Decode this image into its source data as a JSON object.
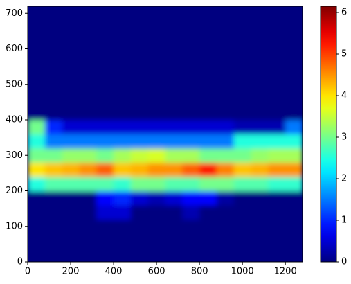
{
  "chart_data": {
    "type": "heatmap",
    "colormap": "jet",
    "xbins": [
      0,
      80,
      160,
      240,
      320,
      400,
      480,
      560,
      640,
      720,
      800,
      880,
      960,
      1040,
      1120,
      1200,
      1280
    ],
    "ybins": [
      0,
      40,
      80,
      120,
      160,
      200,
      240,
      280,
      320,
      360,
      400,
      440,
      480,
      520,
      560,
      600,
      640,
      680,
      720
    ],
    "z": [
      [
        0,
        0,
        0,
        0,
        0,
        0,
        0,
        0,
        0,
        0,
        0,
        0,
        0,
        0,
        0,
        0
      ],
      [
        0,
        0,
        0,
        0,
        0,
        0,
        0,
        0,
        0,
        0,
        0,
        0,
        0,
        0,
        0,
        0
      ],
      [
        0,
        0,
        0,
        0,
        0,
        0,
        0,
        0,
        0,
        0,
        0,
        0,
        0,
        0,
        0,
        0
      ],
      [
        0,
        0,
        0,
        0,
        0.5,
        0.5,
        0,
        0,
        0,
        0.3,
        0,
        0,
        0,
        0,
        0,
        0
      ],
      [
        0,
        0,
        0,
        0,
        0.8,
        1,
        0.5,
        0.3,
        0.5,
        0.8,
        0.8,
        0.2,
        0,
        0,
        0,
        0
      ],
      [
        2.5,
        2.8,
        2.8,
        2.8,
        2.8,
        2.6,
        3,
        3,
        2.8,
        2.8,
        3,
        3,
        2.8,
        2.8,
        2.6,
        2.6
      ],
      [
        4,
        4.2,
        4.3,
        4.5,
        4.8,
        4.2,
        4.3,
        4.5,
        4.5,
        4.8,
        5.2,
        4.6,
        4.2,
        4.3,
        4.5,
        4.5
      ],
      [
        3,
        3,
        3.2,
        3.2,
        3,
        3.3,
        3.5,
        3.6,
        3.3,
        3.3,
        3,
        3,
        3,
        3.2,
        3.3,
        3.3
      ],
      [
        2.5,
        1.5,
        1.5,
        1.5,
        1.5,
        1.5,
        1.5,
        1.5,
        1.5,
        1.5,
        1.5,
        1.5,
        2.5,
        2.5,
        2.5,
        2.5
      ],
      [
        3,
        1,
        0.5,
        0.5,
        0.5,
        0.5,
        0.5,
        0.5,
        0.5,
        0.5,
        0.5,
        0.5,
        0.3,
        0.3,
        0.3,
        1.5
      ],
      [
        0,
        0,
        0,
        0,
        0,
        0,
        0,
        0,
        0,
        0,
        0,
        0,
        0,
        0,
        0,
        0
      ],
      [
        0,
        0,
        0,
        0,
        0,
        0,
        0,
        0,
        0,
        0,
        0,
        0,
        0,
        0,
        0,
        0
      ],
      [
        0,
        0,
        0,
        0,
        0,
        0,
        0,
        0,
        0,
        0,
        0,
        0,
        0,
        0,
        0,
        0
      ],
      [
        0,
        0,
        0,
        0,
        0,
        0,
        0,
        0,
        0,
        0,
        0,
        0,
        0,
        0,
        0,
        0
      ],
      [
        0,
        0,
        0,
        0,
        0,
        0,
        0,
        0,
        0,
        0,
        0,
        0,
        0,
        0,
        0,
        0
      ],
      [
        0,
        0,
        0,
        0,
        0,
        0,
        0,
        0,
        0,
        0,
        0,
        0,
        0,
        0,
        0,
        0
      ],
      [
        0,
        0,
        0,
        0,
        0,
        0,
        0,
        0,
        0,
        0,
        0,
        0,
        0,
        0,
        0,
        0
      ],
      [
        0,
        0,
        0,
        0,
        0,
        0,
        0,
        0,
        0,
        0,
        0,
        0,
        0,
        0,
        0,
        0
      ]
    ],
    "xlim": [
      0,
      1280
    ],
    "ylim": [
      0,
      720
    ],
    "xticks": [
      0,
      200,
      400,
      600,
      800,
      1000,
      1200
    ],
    "yticks": [
      0,
      100,
      200,
      300,
      400,
      500,
      600,
      700
    ],
    "clim": [
      0,
      6.15
    ],
    "cticks": [
      0,
      1,
      2,
      3,
      4,
      5,
      6
    ]
  }
}
